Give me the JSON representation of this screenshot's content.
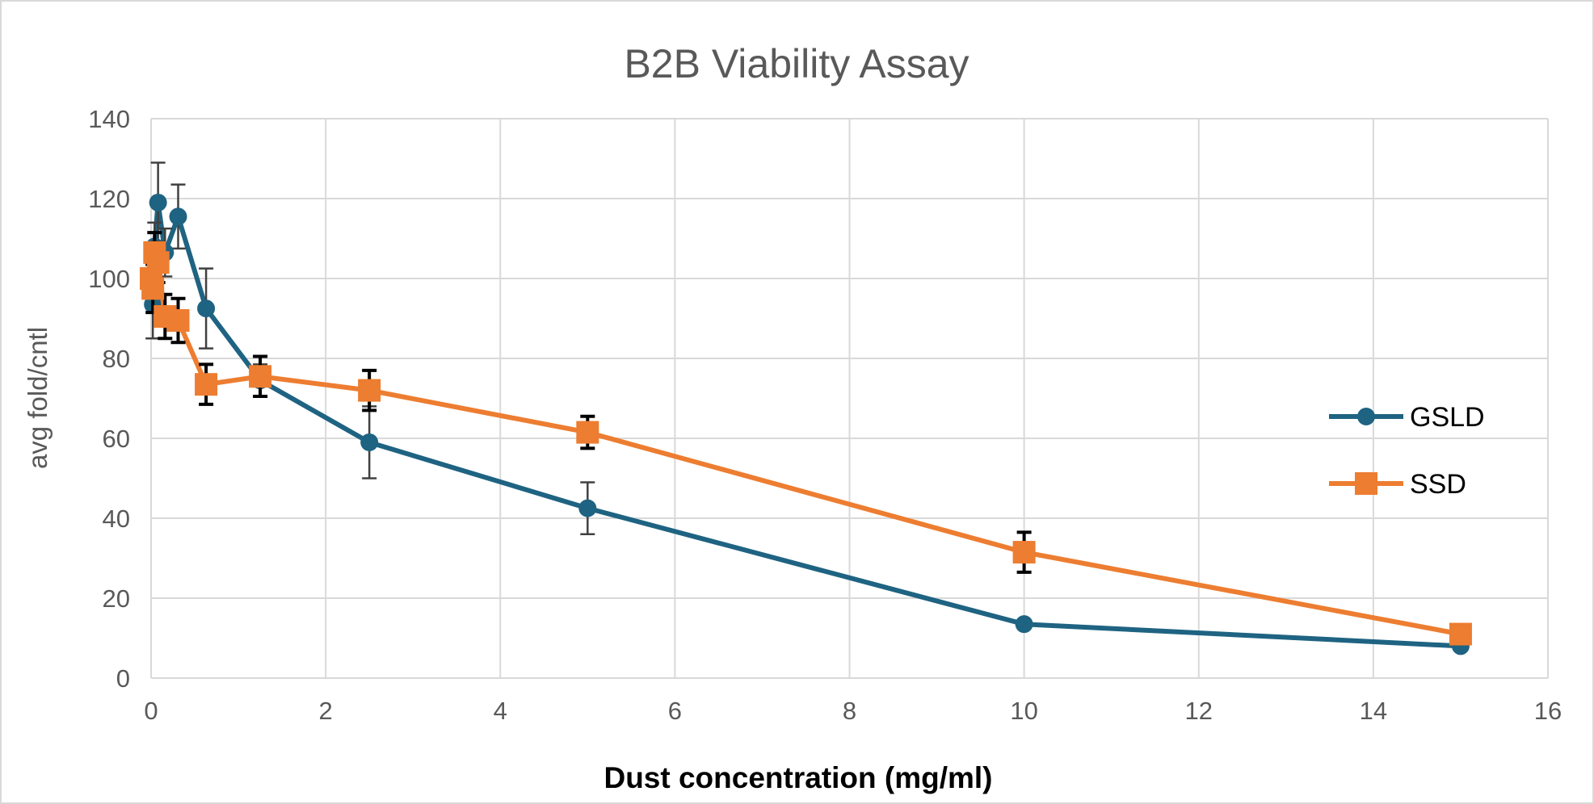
{
  "chart_data": {
    "type": "line",
    "title": "B2B Viability Assay",
    "xlabel": "Dust concentration (mg/ml)",
    "ylabel": "avg fold/cntl",
    "xlim": [
      0,
      16
    ],
    "ylim": [
      0,
      140
    ],
    "x_ticks": [
      "0",
      "2",
      "4",
      "6",
      "8",
      "10",
      "12",
      "14",
      "16"
    ],
    "y_ticks": [
      "0",
      "20",
      "40",
      "60",
      "80",
      "100",
      "120",
      "140"
    ],
    "grid": true,
    "legend_position": "right",
    "series": [
      {
        "name": "GSLD",
        "color": "#1f6382",
        "marker": "circle",
        "x": [
          0,
          0.02,
          0.04,
          0.08,
          0.16,
          0.31,
          0.63,
          1.25,
          2.5,
          5,
          10,
          15
        ],
        "y": [
          100,
          93.5,
          108,
          119,
          106.5,
          115.5,
          92.5,
          74.5,
          59,
          42.5,
          13.5,
          8
        ],
        "err": [
          0,
          8.5,
          6,
          10,
          6,
          8,
          10,
          4,
          9,
          6.5,
          0,
          0
        ]
      },
      {
        "name": "SSD",
        "color": "#ed7d31",
        "marker": "square",
        "x": [
          0,
          0.02,
          0.04,
          0.08,
          0.16,
          0.31,
          0.63,
          1.25,
          2.5,
          5,
          10,
          15
        ],
        "y": [
          100,
          97.5,
          106.5,
          104,
          90.5,
          89.5,
          73.5,
          75.5,
          72,
          61.5,
          31.5,
          11
        ],
        "err": [
          0,
          6,
          5,
          5,
          5.5,
          5.5,
          5,
          5,
          5,
          4,
          5,
          0
        ]
      }
    ]
  }
}
